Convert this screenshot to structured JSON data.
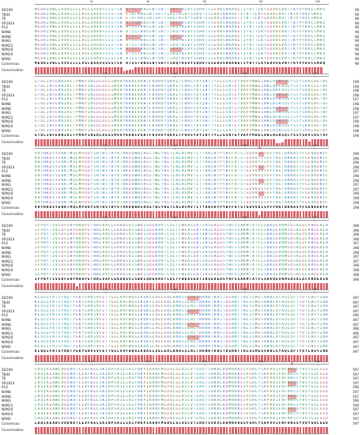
{
  "species": [
    "AD169",
    "TB40",
    "TR",
    "VR1814",
    "P14",
    "NAN6",
    "NAN8",
    "NAN3",
    "NAN13",
    "NAN16",
    "NAN10",
    "NAN5"
  ],
  "labels": {
    "consensus": "Consensus",
    "conservation": "Conservation"
  },
  "marker_symbol": "*",
  "colors": {
    "highlight": "#f2a9a9",
    "conservation_bar": "#d9626b",
    "star": "#e23b3b",
    "hydrophobic": "#2a7a2a",
    "positive": "#3f57c7",
    "negative": "#c73fa0",
    "polar": "#2e9ea7",
    "special": "#a06a2a"
  },
  "blocks": [
    {
      "ruler": [
        "20",
        "40",
        "60",
        "80",
        "100"
      ],
      "seqs": [
        "MEDRIVWLLVVVILCLVGLQAAVSSSSTSH ATSSTHNGSHTSRTTSAQTRSVYSQHVTSSEAVSHRANETIYNTTLKYGDVVGVNTTKYPYRVCSMAQ",
        "MEDRIVWLLVVVILCLVGLQAAVSSSSTSH GTATHNGSHTSRTTSAQTRSVYSQHVTSSEAVSHRANETIYNTTLKYGDVVGVNTTKYPYRVCSMAQ",
        "MEDRIVWLLVVVILCLVGLQAAVSSSSTSH GTATHNGSHTSRTTSAQTRSVYSQHVTSSEAVSHRANETIYNTTLKYGDVVGVNTTKYPYRVCSMAQ",
        "MEDRIVWLLVVVILCLVGLQAAVSSSSTSH ATSSAHNGSHTSRTTSAQTRSVYSQHVTSSEAVSHRANETIYNTTLKYGDVVGVNTTKYPYRVCSMAQ",
        "MEDRIVWLLVVVILCLVGLQAAVSSSSTSH ATSSTHNGSHTSRTTSAQTRSVYSQHVTSSEAVSHRANETIYNTTLKYGDVVGVNTTKYPYRVCSMAQ",
        "MEDRIVWLLVVVILCLVGLQAAVSSSSTSH ATSSTHNGSHTSRTTSAQTRSVYSQHVTSSEAVSHRANETIYNTTLKYGDVVGVNTTKYPYRVCSMAQ",
        "MEDRIVWLLVVVILCLVGLQAAVSSSSTSH ATSSTHNGSHTSRTTSAQTRSVYSQHVTSSEAVSHRANETIYNTTLKYGDVVGVNTTKYPYRVCSMAQ",
        "MEDRIVWLLVVVILCLVGLQAAVSSSSTSH ATSSTHNGSHTSRTTSAQTRSVYSQHVTSSEAVSHRANETIYNTTLKYGDVVGVNTTKYPYRVCSMAQ",
        "MEDRIVWLLVVVILCLVGLQAAVSSSSTSH ATSSTHNGSHTSRTTSAQTRSVYSQHVTSSEAVSHRANETIYNTTLKYGDVVGVNTTKYPYRVCSMAQ",
        "MEDRIVWLLVVVILCLVGLQAAVSSSSTSH ATSSTHNGSHTSRTTSAQTRSVYSQHVTSSEAVSHRANETIYNTTLKYGDVVGVNTTKYPYRVCSMAQ",
        "MEDRIVWLLVVVILCLVGLQAAVSSSSTSH ATSSTHNGSHTSRTTSAQTRSVYSQHVTSSEAVSHRANETIYNTTLKYGDVVGVNTTKYPYRVCSMAQ",
        "MEDRIVWLLVVVILCLVGLQAAVSSSSTSH ATSSTHNGSHTSRTTSAQTRSVYSQHVTSSEAVSHRANETIYNTTLKYGDVVGVNTTKYPYRVCSMAQ"
      ],
      "ends": [
        "98",
        "98",
        "98",
        "98",
        "98",
        "98",
        "98",
        "98",
        "98",
        "98",
        "98",
        "98"
      ],
      "consensus": "MEDRIVWLLVVVILCLVGLQAAVSSSSTSH ATSSTHNGSHTSRTTSAQTRSVYSQHVTSSEAVSHRANETIYNTTLKYGDVVGVNTTKYPYRVCSMAQ",
      "consensus_end": "98",
      "conservation": [
        1,
        1,
        1,
        1,
        1,
        1,
        1,
        1,
        1,
        1,
        1,
        1,
        1,
        1,
        1,
        1,
        1,
        1,
        1,
        1,
        1,
        1,
        1,
        1,
        1,
        1,
        1,
        1,
        1,
        1,
        0.3,
        0.5,
        0.6,
        0.6,
        1,
        1,
        1,
        1,
        1,
        1,
        1,
        1,
        1,
        1,
        1,
        1,
        1,
        1,
        1,
        1,
        1,
        1,
        1,
        1,
        1,
        1,
        1,
        1,
        1,
        1,
        1,
        1,
        1,
        1,
        1,
        1,
        1,
        1,
        1,
        1,
        1,
        1,
        1,
        1,
        1,
        1,
        1,
        1,
        1,
        1,
        1,
        1,
        1,
        1,
        1,
        1,
        1,
        1,
        1,
        1,
        1,
        1,
        1,
        1,
        1,
        1,
        1,
        1
      ],
      "highlights": [
        [
          31,
          35
        ],
        [
          46,
          49
        ]
      ],
      "stars": []
    },
    {
      "ruler": [
        "120",
        "140",
        "160",
        "180"
      ],
      "seqs": [
        "GTDLIRFERNIVCTPMKPINEDLDEGIMVVYKRNIVAHTFKVRVYQKVLTFRRSYAYIHTTYLLGSNTEYVAPPMWEIHHINSHSQCYSSYSRVIAGTVF",
        "GTDLIRFERNIVCTPMKPINEDLDEGIMVVYKRNIVAHTFKVRVYQKVLTFRRSYAYIHTTYLLGSNTEYVAPPMWEIHHINKFAQCYSSYSRVIGGTVF",
        "GTDLIRFERNIVCTPMKPINEDLDEGIMVVYKRNIVAHTFKVRVYQKVLTFRRSYAYIHTTYLLGSNTEYVAPPMWEIHHINKFAQCYSSYSRVIGGTVF",
        "GTDLIRFERNIVCTPMKPINEDLDEGIMVVYKRNIVAHTFKVRVYQKVLTFRRSYAYIHTTYLLGSNTEYVAPPMWEIHHINSHSQCYSSYSRVIAGTVF",
        "GTDLIRFERNIVCTPMKPINEDLDEGIMVVYKRNIVAHTFKVRVYQKVLTFRRSYAYIHTTYLLGSNTEYVAPPMWEIHHINSHSQCYSSYSRVIAGTVF",
        "GTDLIRFERNIVCTPMKPINEDLDEGIMVVYKRNIVAHTFKVRVYQKVLTFRRSYAYIHTTYLLGSNTEYVAPPMWEIHHINSHSQCYSSYSRVIAGTVF",
        "GTDLIRFERNIVCTPMKPINEDLDEGIMVVYKRNIVAHTFKVRVYQKVLTFRRSYAYIHTTYLLGSNTEYVAPPMWEIHHINSHSQCYSSYSRVIAGTVF",
        "GTDLIRFERNIVCTPMKPINEDLDEGIMVVYKRNIVAHTFKVRVYQKVLTFRRSYAYIHTTYLLGSNTEYVAPPMWEIHHINSHSQCYSSYSRVIAGTVF",
        "GTDLIRFERNIVCTPMKPINEDLDEGIMVVYKRNIVAHTFKVRVYQKVLTFRRSYAYIHTTYLLGSNTEYVAPPMWEIHHINSHSQCYSSYSRVIAGTVF",
        "GTDLIRFERNIVCTPMKPINEDLDEGIMVVYKRNIVAHTFKVRVYQKVLTFRRSYAYIHTTYLLGSNTEYVAPPMWEIHHINSHSQCYSSYSRVIAGTVF",
        "GTDLIRFERNIVCTPMKPINEDLDEGIMVVYKRNIVAHTFKVRVYQKVLTFRRSYAYIHTTYLLGSNTEYVAPPMWEIHHINSHSQCYSSYSRVIAGTVF",
        "GTDLIRFERNIVCTPMKPINEDLDEGIMVVYKRNIVAHTFKVRVYQKVLTFRRSYAYIHTTYLLGSNTEYVAPPMWEIHHINSHSQCYSSYSRVIAGTVF"
      ],
      "ends": [
        "198",
        "198",
        "198",
        "198",
        "197",
        "198",
        "198",
        "197",
        "197",
        "198",
        "198",
        "198"
      ],
      "consensus": "GTDLIRFERNIVCTPMKPINEDLDEGIMVVYKRNIVAHTFKVRVYQKVLTFRRSYAYIHTTYLLGSNTEYVAPPMWEIHHINSHSQCYSSYSRVIAGTVF",
      "consensus_end": "198",
      "conservation": [
        1,
        1,
        1,
        1,
        1,
        1,
        1,
        1,
        1,
        1,
        1,
        1,
        1,
        1,
        1,
        1,
        1,
        1,
        1,
        1,
        1,
        1,
        1,
        1,
        1,
        1,
        1,
        1,
        1,
        1,
        1,
        1,
        1,
        1,
        1,
        1,
        1,
        1,
        1,
        1,
        1,
        1,
        1,
        1,
        1,
        1,
        1,
        1,
        1,
        1,
        1,
        1,
        1,
        1,
        1,
        1,
        1,
        1,
        1,
        1,
        1,
        1,
        1,
        1,
        1,
        1,
        1,
        1,
        1,
        1,
        1,
        1,
        1,
        1,
        1,
        1,
        1,
        1,
        1,
        1,
        1,
        1,
        0.4,
        0.4,
        0.5,
        1,
        1,
        1,
        1,
        1,
        1,
        1,
        1,
        0.6,
        1,
        1,
        1,
        1,
        1,
        1
      ],
      "highlights": [
        [
          82,
          85
        ]
      ],
      "stars": []
    },
    {
      "ruler": [
        "220",
        "240",
        "260",
        "280"
      ],
      "seqs": [
        "VAYHRDSYENKTMQLMPDDYSNTHSTRYVTVKDQWHSRGSTWLYRETCNLNCMVTITTARSKYPYHFFATSTGDVVDISPFYNGTNRNASYFGENADKFF",
        "VAYHRDSYENKTMQLMPDDYSNTHSTRYVTVKDQWHSRGSTWLYRETCNLNCMVTITTARSKYPYHFFATSTGDVVYISPFYNGTNRNASYFGENADKFF",
        "VAYHRDSYENKTMQLMPDDYSNTHSTRYVTVKDQWHSRGSTWLYRETCNLNCMVTITTARSKYPYHFFATSTGDVVYISPFYNGTNRNASYFGENADKFF",
        "VAYHRDSYENKTMQLMPDDYSNTHSTRYVTVKDQWHSRGSTWLYRETCNLNCMVTITTARSKYPYHFFATSTGDVVDISPFYNGTNRNASYFGENADKFF",
        "VAYHRDSYENKTMQLMPDDYSNTHSTRYVTVKDQWHSRGSTWLYRETCNLNCMVTITTARSKYPYHFFATSTGDVVDISPFYNGTNRNASYFGENADKFF",
        "VAYHRDSYENKTMQLMPDDYSNTHSTRYVTVKDQWHSRGSTWLYRETCNLNCMVTITTARSKYPYHFFATSTGDVVDISPFYNGTNRNASYFGENADKFF",
        "VAYHRDSYENKTMQLMPDDYSNTHSTRYVTVKDQWHSRGSTWLYRETCNLNCMVTITTARSKYPYHFFATSTGDVVDISPFYNGTNRNASYFGENADKFF",
        "VAYHRDSYENKTMQLMPDDYSNTHSTRYVTVKDQWHSRGSTWLYRETCNLNCMVTITTARSKYPYHFFATSTGDVVDISPFYNGTNRNASYFGENADKFF",
        "VAYHRDSYENKTMQLMPDDYSNTHSTRYVTVKDQWHSRGSTWLYRETCNLNCMVTITTARSKYPYHFFATSTGDVVDISPFYNGTNRNASYFGENADKFF",
        "VAYHRDSYENKTMQLMPDDYSNTHSTRYVTVKDQWHSRGSTWLYRETCNLNCMVTITTARSKYPYHFFATSTGDVVDISPFYNGTNRNASYFGENADKFF",
        "VAYHRDSYENKTMQLMPDDYSNTHSTRYVTVKDQWHSRGSTWLYRETCNLNCMVTITTARSKYPYHFFATSTGDVVDISPFYNGTNRNASYFGENADKFF",
        "VAYHRDSYENKTMQLMPDDYSNTHSTRYVTVKDQWHSRGSTWLYRETCNLNCMVTITTARSKYPYHFFATSTGDVVDISPFYNGTNRNASYFGENADKFF"
      ],
      "ends": [
        "298",
        "298",
        "298",
        "298",
        "297",
        "298",
        "298",
        "297",
        "297",
        "298",
        "298",
        "298"
      ],
      "consensus": "VAYHRDSYENKTMQLMPDDYSNTHSTRYVTVKDQWHSRGSTWLYRETCNLNCMVTITTARSKYPYHFFATSTGDVVDISPFYNGTNRNASYFGENADKFF",
      "consensus_end": "298",
      "conservation": [
        1,
        1,
        1,
        1,
        1,
        1,
        1,
        1,
        1,
        1,
        1,
        1,
        1,
        1,
        1,
        1,
        1,
        1,
        1,
        1,
        1,
        1,
        1,
        1,
        1,
        1,
        1,
        1,
        1,
        1,
        1,
        1,
        1,
        1,
        1,
        1,
        1,
        1,
        1,
        1,
        1,
        1,
        1,
        1,
        1,
        1,
        1,
        1,
        1,
        1,
        1,
        1,
        1,
        1,
        1,
        1,
        1,
        1,
        1,
        1,
        1,
        1,
        1,
        1,
        1,
        1,
        1,
        1,
        1,
        1,
        1,
        1,
        1,
        1,
        1,
        1,
        0.4,
        1,
        1,
        1,
        1,
        1,
        1,
        1,
        1,
        1,
        1,
        1,
        1,
        1,
        1,
        1,
        1,
        1,
        1,
        1,
        1,
        1,
        1,
        1
      ],
      "highlights": [
        [
          76,
          77
        ]
      ],
      "stars": [
        76
      ]
    },
    {
      "ruler": [
        "320",
        "340",
        "360",
        "380"
      ],
      "seqs": [
        "IFPNYTIVSDFGRPNAAPETHRLVAFLERADSVISWDIQDEKNVTCQLTFWEASERTIRSEAEDSYHFSSAKMTATFLSKKQEVNMSDSALDCVRDEAIN",
        "IFPNYTIVSDFGRPDAAPETHRLVAFLERADSVISWDIQDEKNVTCQLTFWEASERTIRSEAEDSYHFSSAKMTATFLSKKQEVNMSDSALDCVRDEAIN",
        "IFPNYTIVSDFGRPDAAPETHRLVAFLERADSVISWDIQDEKNVTCQLTFWEASERTIRSEAEDSYHFSSAKMTATFLSKKQEVNMSDSALDCVRDEAIN",
        "IFPNYTIVSDFGRPNAAPETHRLVAFLERADSVISWDIQDEKNVTCQLTFWEASERTIRSEAEDSYHFSSAKMTATFLSKKQEVNMSDSALDCVRDEAIN",
        "IFPNYTIVSDFGRPNAAPETHRLVAFLERADSVISWDIQDEKNVTCQLTFWEASERTIRSEAEDSYHFSSAKMTATFLSKKQEVNMSDSALDCVRDEAIN",
        "IFPNYTIVSDFGRPNAAPETHRLVAFLERADSVISWDIQDEKNVTCQLTFWEASERTIRSEAEDSYHFSSAKMTATFLSKKQEVNMSDSALDCVRDEAIN",
        "IFPNYTIVSDFGRPNAAPETHRLVAFLERADSVISWDIQDEKNVTCQLTFWEASERTIRSEAEDSYHFSSAKMTATFLSKKQEVNMSDSALDCVRDEAIN",
        "IFPNYTIVSDFGRPNAAPETHRLVAFLERADSVISWDIQDEKNVTCQLTFWEASERTIRSEAEDSYHFSSAKMTATFLSKKQEVNMSDSALDCVRDEAIN",
        "IFPNYTIVSDFGRPNAAPETHRLVAFLERADSVISWDIQDEKNVTCQLTFWEASERTIRSEAEDSYHFSSAKMTATFLSKKQEVNMSDSALDCVRDEAIN",
        "IFPNYTIVSDFGRPNAAPETHRLVAFLERADSVISWDIQDEKNVTCQLTFWEASERTIRSEAEDSYHFSSAKMTATFLSKKQEVNMSDSALDCVRDEAIN",
        "IFPNYTIVSDFGRPNAAPETHRLVAFLERADSVISWDIQDEKNVTCQLTFWEASERTIRSEAEDSYHFSSAKMTATFLSKKQEVNMSDSALDCVRDEAIN",
        "IFPNYTIVSDFGRPNAAPETHRLVAFLERADSVISWDIQDEKNVTCQLTFWEASERTIRSEAEDSYHFSSAKMTATFLSKKQEVNMSDSALDCVRDEAIN"
      ],
      "ends": [
        "398",
        "398",
        "398",
        "398",
        "397",
        "398",
        "398",
        "397",
        "397",
        "398",
        "398",
        "398"
      ],
      "consensus": "IFPNYTIVSDFGRPNAAPETHRLVAFLERADSVISWDIQDEKNVTCQLTFWEASERTIRSEAEDSYHFSSAKMTATFLSKKQEVNMSDSALDCVRDEAIN",
      "consensus_end": "398",
      "conservation": [
        1,
        1,
        1,
        1,
        1,
        1,
        1,
        1,
        1,
        1,
        1,
        1,
        1,
        1,
        0.5,
        1,
        1,
        1,
        1,
        1,
        1,
        1,
        1,
        1,
        1,
        1,
        1,
        1,
        1,
        1,
        1,
        1,
        1,
        1,
        1,
        1,
        1,
        1,
        1,
        1,
        1,
        1,
        1,
        1,
        1,
        1,
        1,
        1,
        1,
        1,
        1,
        1,
        1,
        1,
        1,
        1,
        1,
        1,
        1,
        1,
        1,
        1,
        1,
        1,
        1,
        1,
        1,
        1,
        1,
        1,
        1,
        1,
        1,
        1,
        1,
        1,
        1,
        1,
        1,
        1,
        1,
        1,
        1,
        1,
        1,
        1,
        1,
        1,
        1,
        1,
        1,
        1,
        1,
        1,
        1,
        1,
        1,
        1,
        1,
        1
      ],
      "highlights": [],
      "stars": []
    },
    {
      "ruler": [
        "420",
        "440",
        "460",
        "480"
      ],
      "seqs": [
        "KLQQIFNTSYNQTYEKYGNVSVFETTGGLVVFWQGIKQKSLVELERLANRSSLNLTHRNRTKRSTDGNNTTHLSSMESVHNLVYAQLQFTYDTLRGYINRA",
        "KLQQIFNTSYNQTYEKYGNVSVFETTGGLVVFWQGIKQKSLVELERLANRSSLNLTHRNRTKRSTDGNNTTHLSSMESVHNLVYAQLQFTYDTLRGYINRA",
        "KLQQIFNTSYNQTYEKYGNVSVFETTGGLVVFWQGIKQKSLVELERLANRSSLNLTHRNRTKRSTDGNNTTHLSSMESVHNLVYAQLQFTYDTLRGYINRA",
        "KLQQIFNTSYNQTYEKYGNVSVFETTGGLVVFWQGIKQKSLVELERLANRSSLNLTHRNRTKRSTDGNNTTHLSSMESVHNLVYAQLQFTYDTLRGYINRA",
        "KLQQIFNTSYNQTYEKYGNVSVFETTGGLVVFWQGIKQKSLVELERLANRSSLNLTHRNRTKRSTDGNNTTHLSSMESVHNLVYAQLQFTYDTLRGYINRA",
        "KLQQIFNTSYNQTYEKYGNVSVFETTGGLVVFWQGIKQKSLVELERLANRSSLNLTHRNRTKRSTDGNNTTHLSSMESVHNLVYAQLQFTYDTLRGYINRA",
        "KLQQIFNTSYNQTYEKYGNVSVFETTGGLVVFWQGIKQKSLVELERLANRSSLNLTHRNRTKRSTDGNNTTHLSSMESVHNLVYAQLQFTYDTLRGYINRA",
        "KLQQIFNTSYNQTYEKYGNVSVFETTGGLVVFWQGIKQKSLVELERLANRSSLNLTHRNRTKRSTDGNNTTHLSSMESVHNLVYAQLQFTYDTLRGYINRA",
        "KLQQIFNTSYNQTYEKYGNVSVFETTGGLVVFWQGIKQKSLVELERLANRSSLNLTHRNRTKRSTDGNNTTHLSSMESVHNLVYAQLQFTYDTLRGYINRA",
        "KLQQIFNTSYNQTYEKYGNVSVFETTGGLVVFWQGIKQKSLVELERLANRSSLNLTHRNRTKRSTDGNNTTHLSSMESVHNLVYAQLQFTYDTLRGYINRA",
        "KLQQIFNTSYNQTYEKYGNVSVFETTGGLVVFWQGIKQKSLVELERLANRSSLNLTHRNRTKRSTDGNNTTHLSSMESVHNLVYAQLQFTYDTLRGYINRA",
        "KLQQIFNTSYNQTYEKYGNVSVFETTGGLVVFWQGIKQKSLVELERLANRSSLNLTHRNRTKRSTDGNNTTHLSSMESVHNLVYAQLQFTYDTLRGYINRA"
      ],
      "ends": [
        "497",
        "497",
        "497",
        "497",
        "496",
        "497",
        "497",
        "496",
        "496",
        "497",
        "497",
        "497"
      ],
      "consensus": "KLQQIFNTSYNQTYEKYGNVSVFETTGGLVVFWQGIKQKSLVELERLANRSSLNLTHRNRTKRSTDGNNTTHLSSMESVHNLVYAQLQFTYDTLRGYINRA",
      "consensus_end": "497",
      "conservation": [
        1,
        1,
        1,
        1,
        1,
        1,
        1,
        1,
        1,
        1,
        1,
        1,
        1,
        1,
        1,
        1,
        1,
        1,
        1,
        1,
        1,
        1,
        1,
        1,
        1,
        1,
        1,
        1,
        1,
        1,
        1,
        1,
        1,
        1,
        1,
        1,
        1,
        1,
        1,
        1,
        1,
        1,
        1,
        1,
        1,
        1,
        1,
        1,
        1,
        1,
        1,
        1,
        1,
        1,
        1,
        1,
        1,
        1,
        1,
        1,
        1,
        1,
        1,
        1,
        1,
        1,
        1,
        1,
        1,
        1,
        1,
        1,
        1,
        1,
        1,
        1,
        1,
        1,
        1,
        1,
        1,
        1,
        1,
        1,
        1,
        1,
        1,
        1,
        1,
        1,
        1,
        1,
        1,
        1,
        1,
        1,
        1,
        1,
        1,
        1
      ],
      "highlights": [
        [
          52,
          55
        ]
      ],
      "stars": []
    },
    {
      "ruler": [
        "520",
        "540",
        "560",
        "580",
        "600"
      ],
      "seqs": [
        "LAQIAEAWCVDQRRTLEVFKELSKINPSAILSAIYNKPIAARFMGDVLGLASCVTINQTSVKVLRDMNVKESPGRCYSRPVVIFNFANSSYVQYGQLGED",
        "LAQIAEAWCVDQRRTLEVFKELSKINPSAILSAIYNKPIAARFMGDVLGLASCVTINQTSVKVLRDMNVKESPGRCYSRPVVIFNFANSSYVQYGQLGED",
        "LAQIAEAWCVDQRRTLEVFKELSKINPSAILSAIYNKPIAARFMGDVLGLASCVTINQTSVKVLRDMNVKESPGRCYSRPVVIFNFANSSYVQYGQLGED",
        "LAQIAEAWCVDQRRTLEVFKELSKINPSAILSAIYNKPIAARFMGDVLGLASCVTINQTSVKVLRDMNVKESPGRCYSRPVVIFNFANSSYVQYGQLGED",
        "LAQIAEAWCVDQRRTLEVFKELSKINPSAILSAIYNKPIAARFMGDVLGLASCVTINQTSVKVLRDMNVKESPGRCYSRPVVIFNFANSSYVQYGQLGED",
        "LAQIAEAWCVDQRRTLEVFKELSKINPSAILSAIYNKPIAARFMGDVLGLASCVTINQTSVKVLRDMNVKESPGRCYSRPVVIFNFANSSYVQYGQLGED",
        "LAQIAEAWCVDQRRTLEVFKELSKINPSAILSAIYNKPIAARFMGDVLGLASCVTINQTSVKVLRDMNVKESPGRCYSRPVVIFNFANSSYVQYGQLGED",
        "LAQIAEAWCVDQRRTLEVFKELSKINPSAILSAIYNKPIAARFMGDVLGLASCVTINQTSVKVLRDMNVKESPGRCYSRPVVIFNFANSSYVQYGQLGED",
        "LAQIAEAWCVDQRRTLEVFKELSKINPSAILSAIYNKPIAARFMGDVLGLASCVTINQTSVKVLRDMNVKESPGRCYSRPVVIFNFANSSYVQYGQLGED",
        "LAQIAEAWCVDQRRTLEVFKELSKINPSAILSAIYNKPIAARFMGDVLGLASCVTINQTSVKVLRDMNVKESPGRCYSRPVVIFNFANSSYVQYGQLGED",
        "LAQIAEAWCVDQRRTLEVFKELSKINPSAILSAIYNKPIAARFMGDVLGLASCVTINQTSVKVLRDMNVKESPGRCYSRPVVIFNFANSSYVQYGQLGED",
        "LAQIAEAWCVDQRRTLEVFKELSKINPSAILSAIYNKPIAARFMGDVLGLASCVTINQTSVKVLRDMNVKESPGRCYSRPVVIFNFANSSYVQYGQLGED"
      ],
      "ends": [
        "597",
        "597",
        "597",
        "597",
        "596",
        "597",
        "597",
        "596",
        "596",
        "597",
        "597",
        "597"
      ],
      "consensus": "LAQIAEAWCVDQRRTLEVFKELSKINPSAILSAIYNKPIAARFMGDVLGLASCVTINQTSVKVLRDMNVKESPGRCYSRPVVIFNFANSSYVQYGQLGED",
      "consensus_end": "597",
      "conservation": [
        1,
        1,
        1,
        1,
        1,
        1,
        1,
        1,
        1,
        1,
        1,
        1,
        1,
        1,
        1,
        1,
        1,
        1,
        1,
        1,
        1,
        1,
        1,
        1,
        1,
        1,
        1,
        1,
        1,
        1,
        1,
        1,
        1,
        1,
        1,
        1,
        1,
        1,
        1,
        1,
        1,
        1,
        1,
        1,
        1,
        1,
        1,
        1,
        1,
        1,
        1,
        1,
        1,
        1,
        1,
        1,
        1,
        1,
        1,
        1,
        1,
        1,
        1,
        1,
        1,
        1,
        1,
        1,
        1,
        1,
        1,
        1,
        1,
        1,
        1,
        1,
        1,
        1,
        1,
        1,
        1,
        1,
        1,
        1,
        1,
        1,
        1,
        1,
        1,
        1,
        1,
        1,
        1,
        1,
        1,
        1,
        1,
        1,
        1,
        1
      ],
      "highlights": [
        [
          86,
          88
        ]
      ],
      "stars": [
        87
      ]
    }
  ]
}
